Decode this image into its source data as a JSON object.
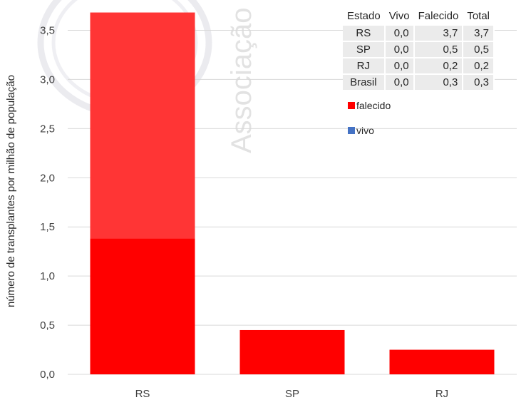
{
  "chart_data": {
    "type": "bar",
    "stacked": true,
    "categories": [
      "RS",
      "SP",
      "RJ"
    ],
    "series": [
      {
        "name": "vivo",
        "values": [
          0.0,
          0.0,
          0.0
        ],
        "color": "#4472c4"
      },
      {
        "name": "falecido",
        "values": [
          3.68,
          0.45,
          0.25
        ],
        "color": "#ff0000"
      }
    ],
    "ylabel": "número de transplantes por milhão de população",
    "ylim": [
      0,
      3.75
    ],
    "yticks": [
      "0,0",
      "0,5",
      "1,0",
      "1,5",
      "2,0",
      "2,5",
      "3,0",
      "3,5"
    ],
    "ytick_values": [
      0,
      0.5,
      1.0,
      1.5,
      2.0,
      2.5,
      3.0,
      3.5
    ],
    "grid": true,
    "legend": [
      {
        "label": "falecido",
        "color": "#ff0000"
      },
      {
        "label": "vivo",
        "color": "#4472c4"
      }
    ],
    "legend_position": "right",
    "rs_upper_overlay_color": "#ff3b3b"
  },
  "table": {
    "headers": [
      "Estado",
      "Vivo",
      "Falecido",
      "Total"
    ],
    "rows": [
      [
        "RS",
        "0,0",
        "3,7",
        "3,7"
      ],
      [
        "SP",
        "0,0",
        "0,5",
        "0,5"
      ],
      [
        "RJ",
        "0,0",
        "0,2",
        "0,2"
      ],
      [
        "Brasil",
        "0,0",
        "0,3",
        "0,3"
      ]
    ]
  },
  "watermark": {
    "text": "Associação"
  }
}
